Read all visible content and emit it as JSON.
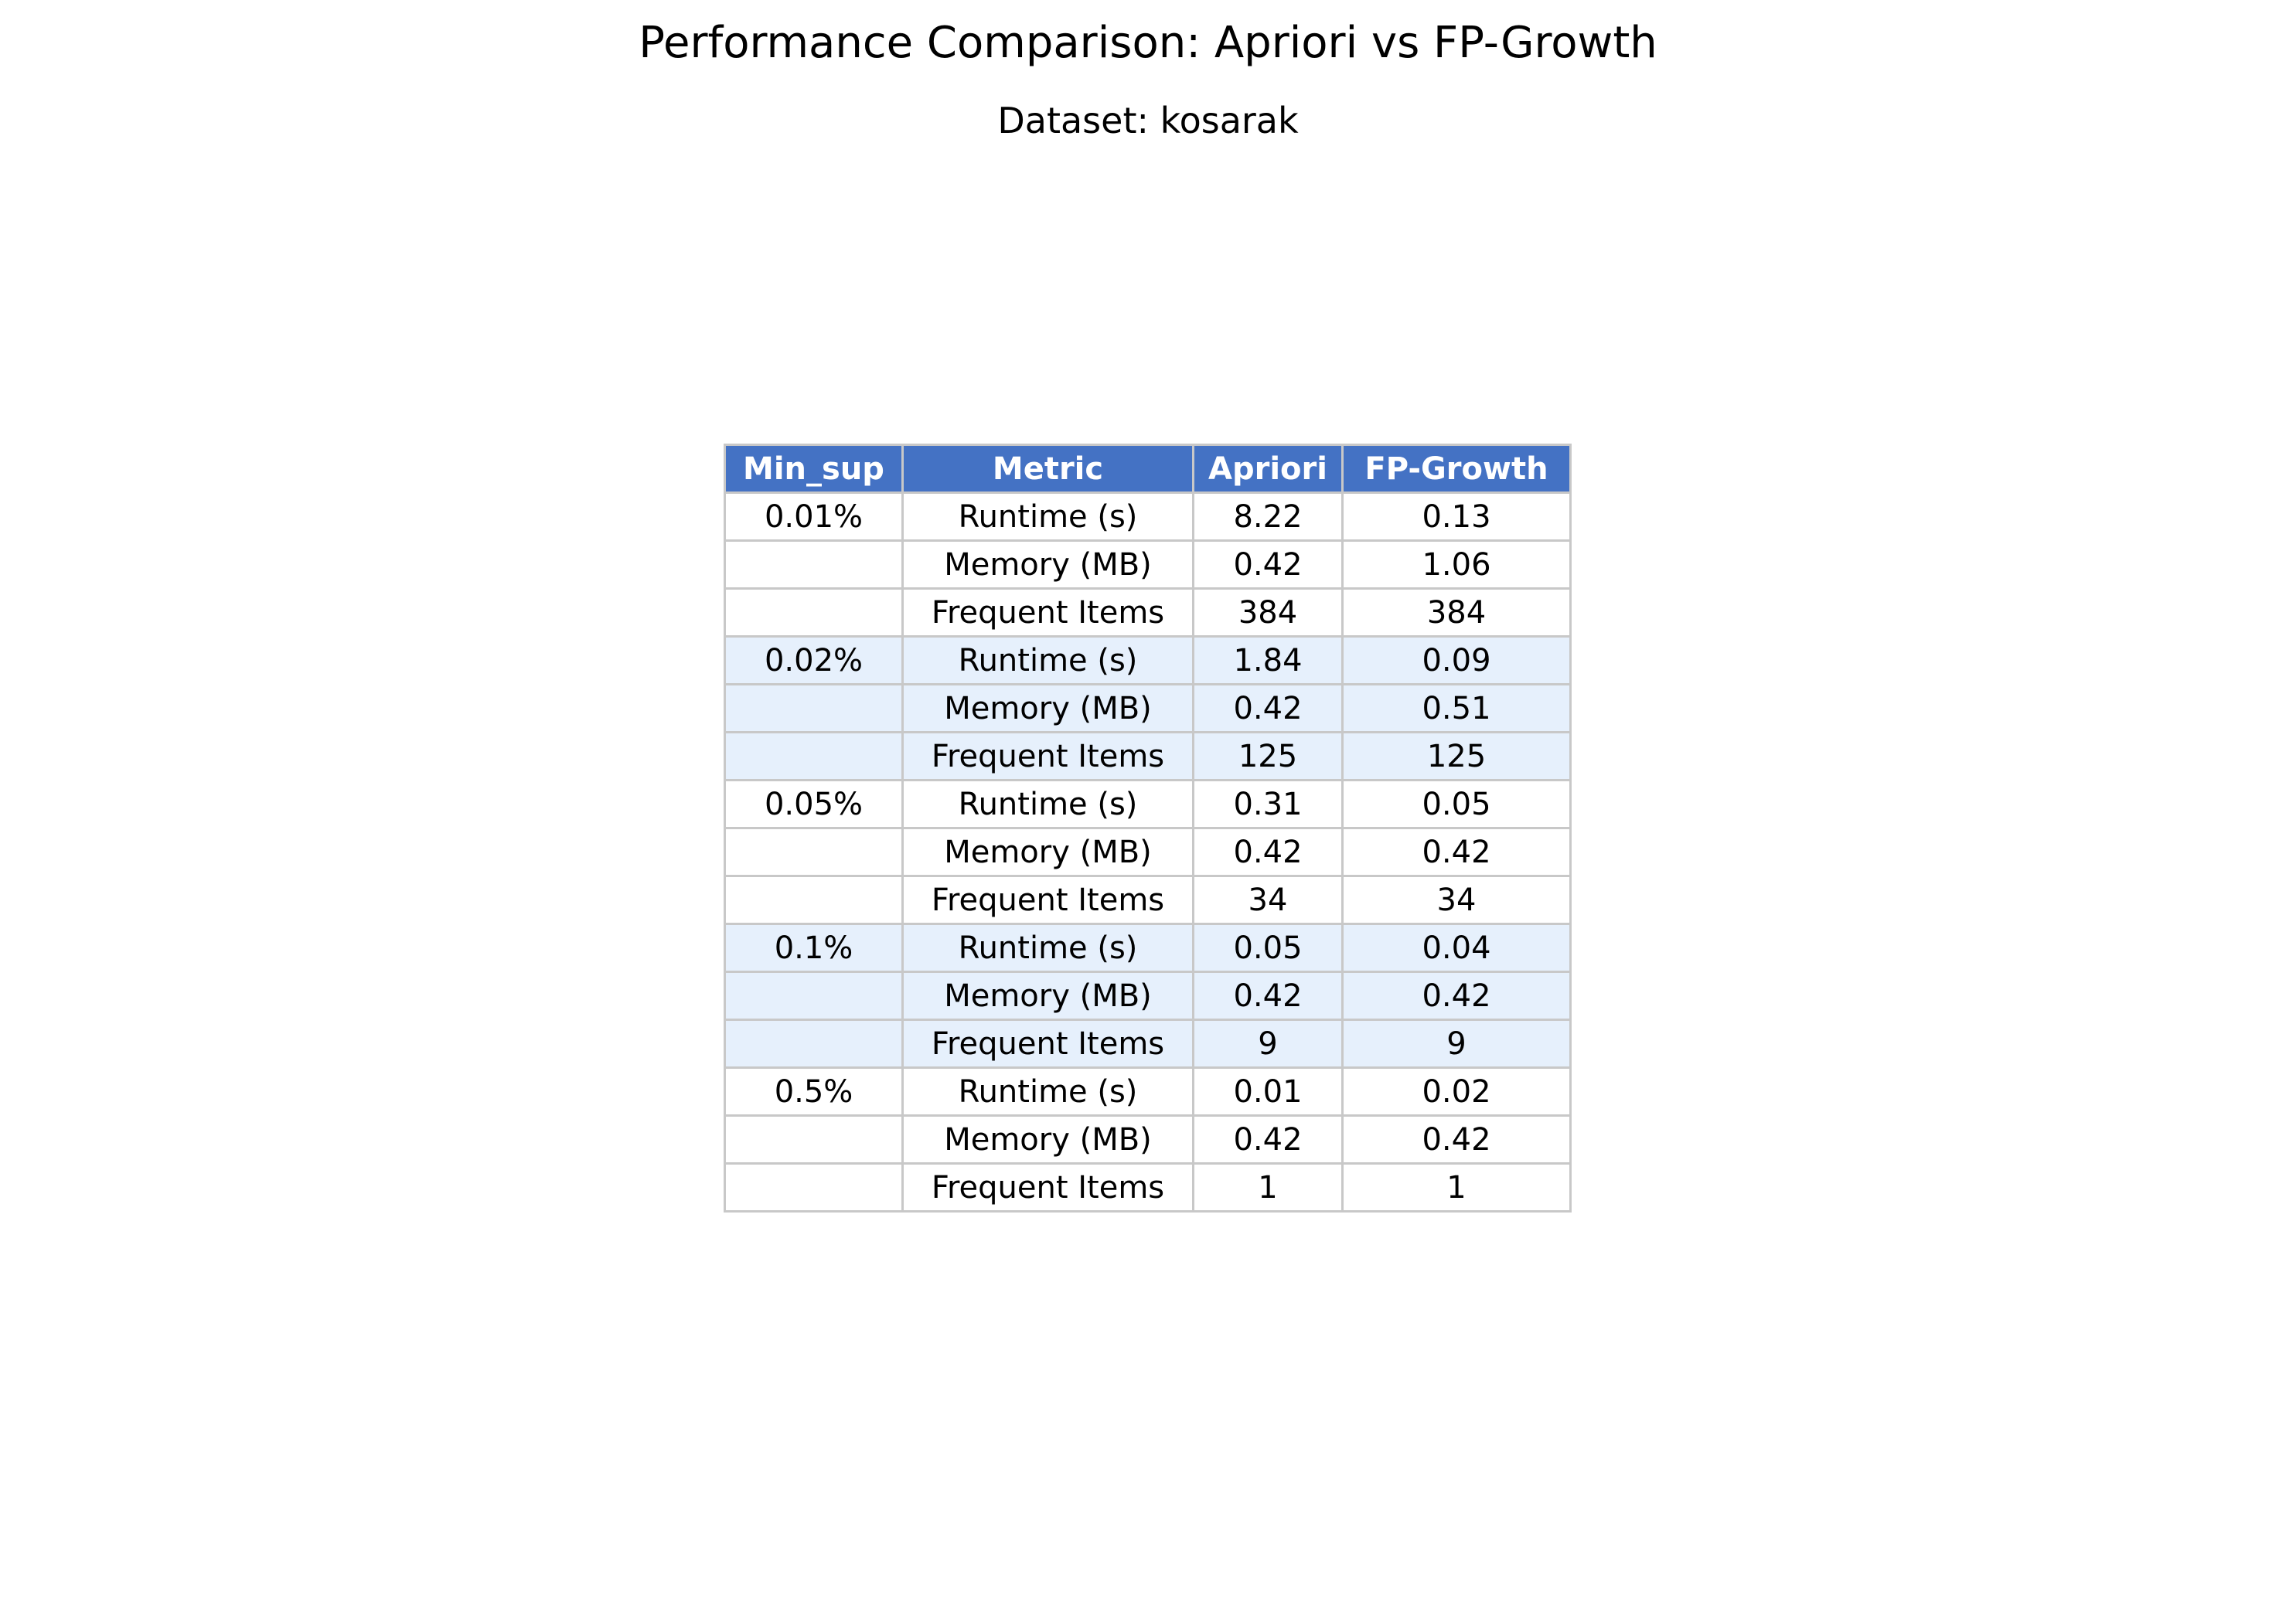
{
  "chart_data": {
    "type": "table",
    "title": "Performance Comparison: Apriori vs FP-Growth",
    "subtitle": "Dataset: kosarak",
    "columns": [
      "Min_sup",
      "Metric",
      "Apriori",
      "FP-Growth"
    ],
    "rows": [
      [
        "0.01%",
        "Runtime (s)",
        "8.22",
        "0.13"
      ],
      [
        "",
        "Memory (MB)",
        "0.42",
        "1.06"
      ],
      [
        "",
        "Frequent Items",
        "384",
        "384"
      ],
      [
        "0.02%",
        "Runtime (s)",
        "1.84",
        "0.09"
      ],
      [
        "",
        "Memory (MB)",
        "0.42",
        "0.51"
      ],
      [
        "",
        "Frequent Items",
        "125",
        "125"
      ],
      [
        "0.05%",
        "Runtime (s)",
        "0.31",
        "0.05"
      ],
      [
        "",
        "Memory (MB)",
        "0.42",
        "0.42"
      ],
      [
        "",
        "Frequent Items",
        "34",
        "34"
      ],
      [
        "0.1%",
        "Runtime (s)",
        "0.05",
        "0.04"
      ],
      [
        "",
        "Memory (MB)",
        "0.42",
        "0.42"
      ],
      [
        "",
        "Frequent Items",
        "9",
        "9"
      ],
      [
        "0.5%",
        "Runtime (s)",
        "0.01",
        "0.02"
      ],
      [
        "",
        "Memory (MB)",
        "0.42",
        "0.42"
      ],
      [
        "",
        "Frequent Items",
        "1",
        "1"
      ]
    ],
    "colors": {
      "header_background": "#4472c4",
      "header_text": "#ffffff",
      "alternate_group_background": "#e6f0fc",
      "border": "#c8c8c8"
    }
  }
}
